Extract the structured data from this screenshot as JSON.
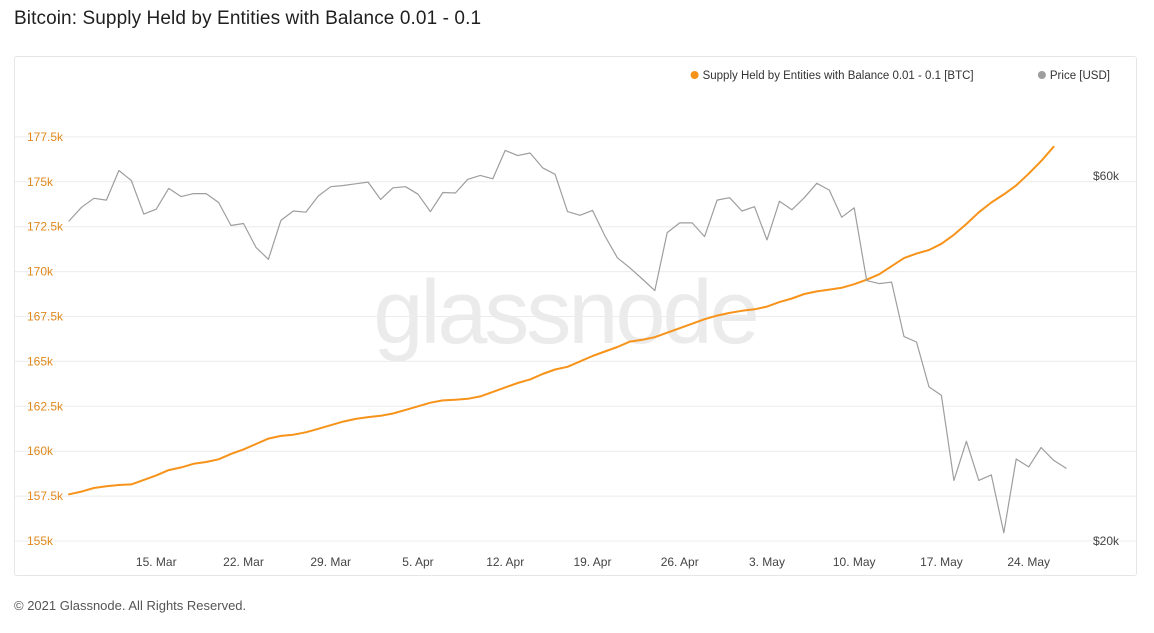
{
  "title": "Bitcoin: Supply Held by Entities with Balance 0.01 - 0.1",
  "footer": "© 2021 Glassnode. All Rights Reserved.",
  "watermark": "glassnode",
  "colors": {
    "supply": "#f7931a",
    "price": "#9e9e9e",
    "grid": "#ececec",
    "left_axis_text": "#e08a1e",
    "right_axis_text": "#444444",
    "x_axis_text": "#444444",
    "watermark": "#e9e9e9"
  },
  "chart_data": {
    "type": "line",
    "title": "Bitcoin: Supply Held by Entities with Balance 0.01 - 0.1",
    "legend_position": "top-right",
    "grid": true,
    "x_type": "date",
    "x_range": [
      "2021-03-08",
      "2021-05-29"
    ],
    "x_ticks": [
      {
        "date": "2021-03-15",
        "label": "15. Mar"
      },
      {
        "date": "2021-03-22",
        "label": "22. Mar"
      },
      {
        "date": "2021-03-29",
        "label": "29. Mar"
      },
      {
        "date": "2021-04-05",
        "label": "5. Apr"
      },
      {
        "date": "2021-04-12",
        "label": "12. Apr"
      },
      {
        "date": "2021-04-19",
        "label": "19. Apr"
      },
      {
        "date": "2021-04-26",
        "label": "26. Apr"
      },
      {
        "date": "2021-05-03",
        "label": "3. May"
      },
      {
        "date": "2021-05-10",
        "label": "10. May"
      },
      {
        "date": "2021-05-17",
        "label": "17. May"
      },
      {
        "date": "2021-05-24",
        "label": "24. May"
      }
    ],
    "y_left": {
      "ylim": [
        155000,
        180000
      ],
      "ticks": [
        155000,
        157500,
        160000,
        162500,
        165000,
        167500,
        170000,
        172500,
        175000,
        177500
      ],
      "tick_labels": [
        "155k",
        "157.5k",
        "160k",
        "162.5k",
        "165k",
        "167.5k",
        "170k",
        "172.5k",
        "175k",
        "177.5k"
      ]
    },
    "y_right": {
      "scale": "log",
      "ticks": [
        20000,
        60000
      ],
      "tick_labels": [
        "$20k",
        "$60k"
      ]
    },
    "series": [
      {
        "name": "Supply Held by Entities with Balance 0.01 - 0.1 [BTC]",
        "axis": "left",
        "color": "#f7931a",
        "points": [
          [
            "2021-03-08",
            157600
          ],
          [
            "2021-03-09",
            157750
          ],
          [
            "2021-03-10",
            157950
          ],
          [
            "2021-03-11",
            158050
          ],
          [
            "2021-03-12",
            158120
          ],
          [
            "2021-03-13",
            158150
          ],
          [
            "2021-03-14",
            158400
          ],
          [
            "2021-03-15",
            158650
          ],
          [
            "2021-03-16",
            158950
          ],
          [
            "2021-03-17",
            159100
          ],
          [
            "2021-03-18",
            159300
          ],
          [
            "2021-03-19",
            159400
          ],
          [
            "2021-03-20",
            159550
          ],
          [
            "2021-03-21",
            159850
          ],
          [
            "2021-03-22",
            160100
          ],
          [
            "2021-03-23",
            160400
          ],
          [
            "2021-03-24",
            160700
          ],
          [
            "2021-03-25",
            160850
          ],
          [
            "2021-03-26",
            160920
          ],
          [
            "2021-03-27",
            161050
          ],
          [
            "2021-03-28",
            161250
          ],
          [
            "2021-03-29",
            161450
          ],
          [
            "2021-03-30",
            161650
          ],
          [
            "2021-03-31",
            161800
          ],
          [
            "2021-04-01",
            161900
          ],
          [
            "2021-04-02",
            161970
          ],
          [
            "2021-04-03",
            162100
          ],
          [
            "2021-04-04",
            162300
          ],
          [
            "2021-04-05",
            162500
          ],
          [
            "2021-04-06",
            162700
          ],
          [
            "2021-04-07",
            162830
          ],
          [
            "2021-04-08",
            162870
          ],
          [
            "2021-04-09",
            162920
          ],
          [
            "2021-04-10",
            163050
          ],
          [
            "2021-04-11",
            163300
          ],
          [
            "2021-04-12",
            163550
          ],
          [
            "2021-04-13",
            163800
          ],
          [
            "2021-04-14",
            164000
          ],
          [
            "2021-04-15",
            164300
          ],
          [
            "2021-04-16",
            164550
          ],
          [
            "2021-04-17",
            164700
          ],
          [
            "2021-04-18",
            165000
          ],
          [
            "2021-04-19",
            165300
          ],
          [
            "2021-04-20",
            165550
          ],
          [
            "2021-04-21",
            165800
          ],
          [
            "2021-04-22",
            166100
          ],
          [
            "2021-04-23",
            166200
          ],
          [
            "2021-04-24",
            166350
          ],
          [
            "2021-04-25",
            166600
          ],
          [
            "2021-04-26",
            166850
          ],
          [
            "2021-04-27",
            167100
          ],
          [
            "2021-04-28",
            167350
          ],
          [
            "2021-04-29",
            167550
          ],
          [
            "2021-04-30",
            167700
          ],
          [
            "2021-05-01",
            167820
          ],
          [
            "2021-05-02",
            167900
          ],
          [
            "2021-05-03",
            168050
          ],
          [
            "2021-05-04",
            168300
          ],
          [
            "2021-05-05",
            168500
          ],
          [
            "2021-05-06",
            168750
          ],
          [
            "2021-05-07",
            168900
          ],
          [
            "2021-05-08",
            169000
          ],
          [
            "2021-05-09",
            169100
          ],
          [
            "2021-05-10",
            169300
          ],
          [
            "2021-05-11",
            169550
          ],
          [
            "2021-05-12",
            169850
          ],
          [
            "2021-05-13",
            170300
          ],
          [
            "2021-05-14",
            170750
          ],
          [
            "2021-05-15",
            171000
          ],
          [
            "2021-05-16",
            171200
          ],
          [
            "2021-05-17",
            171550
          ],
          [
            "2021-05-18",
            172050
          ],
          [
            "2021-05-19",
            172650
          ],
          [
            "2021-05-20",
            173300
          ],
          [
            "2021-05-21",
            173850
          ],
          [
            "2021-05-22",
            174300
          ],
          [
            "2021-05-23",
            174800
          ],
          [
            "2021-05-24",
            175450
          ],
          [
            "2021-05-25",
            176150
          ],
          [
            "2021-05-26",
            176950
          ]
        ]
      },
      {
        "name": "Price [USD]",
        "axis": "right",
        "color": "#9e9e9e",
        "points": [
          [
            "2021-03-08",
            52400
          ],
          [
            "2021-03-09",
            54600
          ],
          [
            "2021-03-10",
            56100
          ],
          [
            "2021-03-11",
            55800
          ],
          [
            "2021-03-12",
            61000
          ],
          [
            "2021-03-13",
            59200
          ],
          [
            "2021-03-14",
            53500
          ],
          [
            "2021-03-15",
            54300
          ],
          [
            "2021-03-16",
            57800
          ],
          [
            "2021-03-17",
            56400
          ],
          [
            "2021-03-18",
            56900
          ],
          [
            "2021-03-19",
            56900
          ],
          [
            "2021-03-20",
            55400
          ],
          [
            "2021-03-21",
            51700
          ],
          [
            "2021-03-22",
            52000
          ],
          [
            "2021-03-23",
            48400
          ],
          [
            "2021-03-24",
            46700
          ],
          [
            "2021-03-25",
            52500
          ],
          [
            "2021-03-26",
            54000
          ],
          [
            "2021-03-27",
            53800
          ],
          [
            "2021-03-28",
            56500
          ],
          [
            "2021-03-29",
            58100
          ],
          [
            "2021-03-30",
            58300
          ],
          [
            "2021-03-31",
            58600
          ],
          [
            "2021-04-01",
            58900
          ],
          [
            "2021-04-02",
            55900
          ],
          [
            "2021-04-03",
            57900
          ],
          [
            "2021-04-04",
            58100
          ],
          [
            "2021-04-05",
            56800
          ],
          [
            "2021-04-06",
            53900
          ],
          [
            "2021-04-07",
            57100
          ],
          [
            "2021-04-08",
            57000
          ],
          [
            "2021-04-09",
            59400
          ],
          [
            "2021-04-10",
            60100
          ],
          [
            "2021-04-11",
            59500
          ],
          [
            "2021-04-12",
            64800
          ],
          [
            "2021-04-13",
            63800
          ],
          [
            "2021-04-14",
            64300
          ],
          [
            "2021-04-15",
            61500
          ],
          [
            "2021-04-16",
            60300
          ],
          [
            "2021-04-17",
            53900
          ],
          [
            "2021-04-18",
            53300
          ],
          [
            "2021-04-19",
            54100
          ],
          [
            "2021-04-20",
            50100
          ],
          [
            "2021-04-21",
            46900
          ],
          [
            "2021-04-22",
            45500
          ],
          [
            "2021-04-23",
            44000
          ],
          [
            "2021-04-24",
            42500
          ],
          [
            "2021-04-25",
            50600
          ],
          [
            "2021-04-26",
            52100
          ],
          [
            "2021-04-27",
            52100
          ],
          [
            "2021-04-28",
            50000
          ],
          [
            "2021-04-29",
            55800
          ],
          [
            "2021-04-30",
            56200
          ],
          [
            "2021-05-01",
            54000
          ],
          [
            "2021-05-02",
            54700
          ],
          [
            "2021-05-03",
            49500
          ],
          [
            "2021-05-04",
            55600
          ],
          [
            "2021-05-05",
            54200
          ],
          [
            "2021-05-06",
            56200
          ],
          [
            "2021-05-07",
            58700
          ],
          [
            "2021-05-08",
            57500
          ],
          [
            "2021-05-09",
            53000
          ],
          [
            "2021-05-10",
            54500
          ],
          [
            "2021-05-11",
            43800
          ],
          [
            "2021-05-12",
            43400
          ],
          [
            "2021-05-13",
            43600
          ],
          [
            "2021-05-14",
            37000
          ],
          [
            "2021-05-15",
            36400
          ],
          [
            "2021-05-16",
            31800
          ],
          [
            "2021-05-17",
            31000
          ],
          [
            "2021-05-18",
            24000
          ],
          [
            "2021-05-19",
            27000
          ],
          [
            "2021-05-20",
            24000
          ],
          [
            "2021-05-21",
            24400
          ],
          [
            "2021-05-22",
            20500
          ],
          [
            "2021-05-23",
            25600
          ],
          [
            "2021-05-24",
            25000
          ],
          [
            "2021-05-25",
            26500
          ],
          [
            "2021-05-26",
            25500
          ],
          [
            "2021-05-27",
            24900
          ]
        ]
      }
    ]
  }
}
